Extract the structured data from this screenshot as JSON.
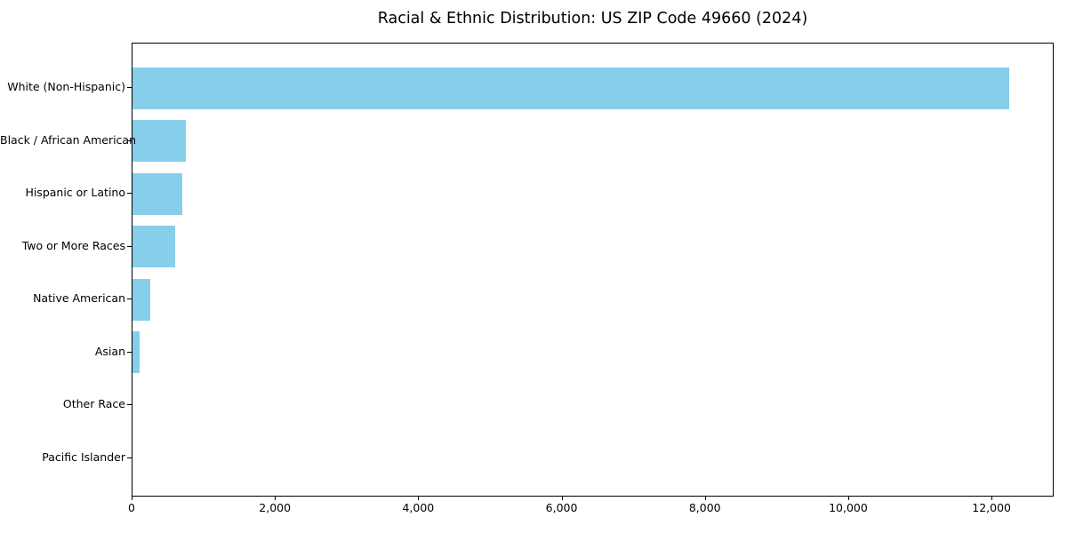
{
  "chart_data": {
    "type": "bar",
    "orientation": "horizontal",
    "title": "Racial & Ethnic Distribution: US ZIP Code 49660 (2024)",
    "categories": [
      "White (Non-Hispanic)",
      "Black / African American",
      "Hispanic or Latino",
      "Two or More Races",
      "Native American",
      "Asian",
      "Other Race",
      "Pacific Islander"
    ],
    "values": [
      12230,
      750,
      700,
      590,
      250,
      100,
      0,
      0
    ],
    "xlabel": "",
    "ylabel": "",
    "xlim": [
      0,
      12842
    ],
    "x_ticks": [
      {
        "value": 0,
        "label": "0"
      },
      {
        "value": 2000,
        "label": "2,000"
      },
      {
        "value": 4000,
        "label": "4,000"
      },
      {
        "value": 6000,
        "label": "6,000"
      },
      {
        "value": 8000,
        "label": "8,000"
      },
      {
        "value": 10000,
        "label": "10,000"
      },
      {
        "value": 12000,
        "label": "12,000"
      }
    ],
    "grid": false,
    "legend": null,
    "colors": {
      "bar_fill": "#87CEEB",
      "axis_line": "#000000",
      "text": "#000000",
      "background": "#ffffff"
    }
  }
}
